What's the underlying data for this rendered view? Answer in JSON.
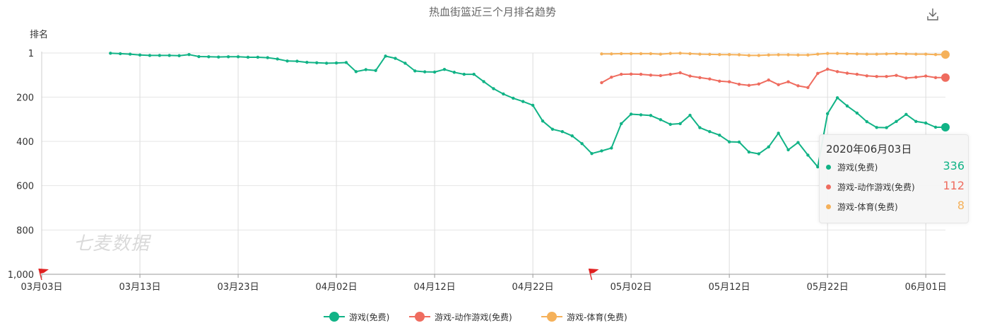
{
  "header": {
    "title": "热血街篮近三个月排名趋势",
    "y_axis_name": "排名",
    "watermark": "七麦数据",
    "download_icon": "download-icon"
  },
  "colors": {
    "free": "#11b386",
    "action": "#ef6c5f",
    "sports": "#f5b15a",
    "grid": "#e6e6e6",
    "axis": "#999999"
  },
  "chart_data": {
    "type": "line",
    "title": "热血街篮近三个月排名趋势",
    "ylabel": "排名",
    "y_inverted": true,
    "ylim": [
      1,
      1000
    ],
    "y_ticks": [
      1,
      200,
      400,
      600,
      800,
      1000
    ],
    "y_tick_labels": [
      "1",
      "200",
      "400",
      "600",
      "800",
      "1,000"
    ],
    "x_range": [
      "2020-03-03",
      "2020-06-03"
    ],
    "x_ticks": [
      "2020-03-03",
      "2020-03-13",
      "2020-03-23",
      "2020-04-02",
      "2020-04-12",
      "2020-04-22",
      "2020-05-02",
      "2020-05-12",
      "2020-05-22",
      "2020-06-01"
    ],
    "x_tick_labels": [
      "03月03日",
      "03月13日",
      "03月23日",
      "04月02日",
      "04月12日",
      "04月22日",
      "05月02日",
      "05月12日",
      "05月22日",
      "06月01日"
    ],
    "grid": true,
    "legend_position": "bottom",
    "markers": [
      {
        "type": "flag",
        "date": "2020-03-03",
        "icon": "flag-icon"
      },
      {
        "type": "flag",
        "date": "2020-04-28",
        "icon": "flag-icon"
      }
    ],
    "series": [
      {
        "name": "游戏(免费)",
        "color": "#11b386",
        "points": [
          [
            "2020-03-10",
            2
          ],
          [
            "2020-03-11",
            4
          ],
          [
            "2020-03-12",
            6
          ],
          [
            "2020-03-13",
            10
          ],
          [
            "2020-03-14",
            12
          ],
          [
            "2020-03-15",
            12
          ],
          [
            "2020-03-16",
            12
          ],
          [
            "2020-03-17",
            13
          ],
          [
            "2020-03-18",
            8
          ],
          [
            "2020-03-19",
            17
          ],
          [
            "2020-03-20",
            18
          ],
          [
            "2020-03-21",
            19
          ],
          [
            "2020-03-22",
            18
          ],
          [
            "2020-03-23",
            18
          ],
          [
            "2020-03-24",
            20
          ],
          [
            "2020-03-25",
            20
          ],
          [
            "2020-03-26",
            22
          ],
          [
            "2020-03-27",
            28
          ],
          [
            "2020-03-28",
            37
          ],
          [
            "2020-03-29",
            38
          ],
          [
            "2020-03-30",
            43
          ],
          [
            "2020-03-31",
            45
          ],
          [
            "2020-04-01",
            47
          ],
          [
            "2020-04-02",
            46
          ],
          [
            "2020-04-03",
            44
          ],
          [
            "2020-04-04",
            85
          ],
          [
            "2020-04-05",
            76
          ],
          [
            "2020-04-06",
            80
          ],
          [
            "2020-04-07",
            15
          ],
          [
            "2020-04-08",
            25
          ],
          [
            "2020-04-09",
            47
          ],
          [
            "2020-04-10",
            82
          ],
          [
            "2020-04-11",
            86
          ],
          [
            "2020-04-12",
            87
          ],
          [
            "2020-04-13",
            75
          ],
          [
            "2020-04-14",
            88
          ],
          [
            "2020-04-15",
            97
          ],
          [
            "2020-04-16",
            97
          ],
          [
            "2020-04-17",
            130
          ],
          [
            "2020-04-18",
            162
          ],
          [
            "2020-04-19",
            186
          ],
          [
            "2020-04-20",
            205
          ],
          [
            "2020-04-21",
            220
          ],
          [
            "2020-04-22",
            237
          ],
          [
            "2020-04-23",
            308
          ],
          [
            "2020-04-24",
            345
          ],
          [
            "2020-04-25",
            356
          ],
          [
            "2020-04-26",
            375
          ],
          [
            "2020-04-27",
            410
          ],
          [
            "2020-04-28",
            455
          ],
          [
            "2020-04-29",
            443
          ],
          [
            "2020-04-30",
            430
          ],
          [
            "2020-05-01",
            320
          ],
          [
            "2020-05-02",
            277
          ],
          [
            "2020-05-03",
            280
          ],
          [
            "2020-05-04",
            283
          ],
          [
            "2020-05-05",
            302
          ],
          [
            "2020-05-06",
            323
          ],
          [
            "2020-05-07",
            320
          ],
          [
            "2020-05-08",
            282
          ],
          [
            "2020-05-09",
            338
          ],
          [
            "2020-05-10",
            356
          ],
          [
            "2020-05-11",
            372
          ],
          [
            "2020-05-12",
            402
          ],
          [
            "2020-05-13",
            403
          ],
          [
            "2020-05-14",
            448
          ],
          [
            "2020-05-15",
            456
          ],
          [
            "2020-05-16",
            425
          ],
          [
            "2020-05-17",
            363
          ],
          [
            "2020-05-18",
            438
          ],
          [
            "2020-05-19",
            405
          ],
          [
            "2020-05-20",
            462
          ],
          [
            "2020-05-21",
            515
          ],
          [
            "2020-05-22",
            275
          ],
          [
            "2020-05-23",
            203
          ],
          [
            "2020-05-24",
            240
          ],
          [
            "2020-05-25",
            272
          ],
          [
            "2020-05-26",
            311
          ],
          [
            "2020-05-27",
            337
          ],
          [
            "2020-05-28",
            338
          ],
          [
            "2020-05-29",
            310
          ],
          [
            "2020-05-30",
            278
          ],
          [
            "2020-05-31",
            310
          ],
          [
            "2020-06-01",
            317
          ],
          [
            "2020-06-02",
            336
          ],
          [
            "2020-06-03",
            336
          ]
        ]
      },
      {
        "name": "游戏-动作游戏(免费)",
        "color": "#ef6c5f",
        "points": [
          [
            "2020-04-29",
            135
          ],
          [
            "2020-04-30",
            110
          ],
          [
            "2020-05-01",
            97
          ],
          [
            "2020-05-02",
            96
          ],
          [
            "2020-05-03",
            97
          ],
          [
            "2020-05-04",
            101
          ],
          [
            "2020-05-05",
            103
          ],
          [
            "2020-05-06",
            97
          ],
          [
            "2020-05-07",
            90
          ],
          [
            "2020-05-08",
            105
          ],
          [
            "2020-05-09",
            112
          ],
          [
            "2020-05-10",
            118
          ],
          [
            "2020-05-11",
            128
          ],
          [
            "2020-05-12",
            131
          ],
          [
            "2020-05-13",
            142
          ],
          [
            "2020-05-14",
            147
          ],
          [
            "2020-05-15",
            141
          ],
          [
            "2020-05-16",
            123
          ],
          [
            "2020-05-17",
            144
          ],
          [
            "2020-05-18",
            131
          ],
          [
            "2020-05-19",
            149
          ],
          [
            "2020-05-20",
            157
          ],
          [
            "2020-05-21",
            93
          ],
          [
            "2020-05-22",
            74
          ],
          [
            "2020-05-23",
            85
          ],
          [
            "2020-05-24",
            92
          ],
          [
            "2020-05-25",
            97
          ],
          [
            "2020-05-26",
            104
          ],
          [
            "2020-05-27",
            107
          ],
          [
            "2020-05-28",
            107
          ],
          [
            "2020-05-29",
            102
          ],
          [
            "2020-05-30",
            114
          ],
          [
            "2020-05-31",
            110
          ],
          [
            "2020-06-01",
            105
          ],
          [
            "2020-06-02",
            112
          ],
          [
            "2020-06-03",
            112
          ]
        ]
      },
      {
        "name": "游戏-体育(免费)",
        "color": "#f5b15a",
        "points": [
          [
            "2020-04-29",
            5
          ],
          [
            "2020-04-30",
            5
          ],
          [
            "2020-05-01",
            4
          ],
          [
            "2020-05-02",
            4
          ],
          [
            "2020-05-03",
            4
          ],
          [
            "2020-05-04",
            4
          ],
          [
            "2020-05-05",
            6
          ],
          [
            "2020-05-06",
            3
          ],
          [
            "2020-05-07",
            2
          ],
          [
            "2020-05-08",
            4
          ],
          [
            "2020-05-09",
            6
          ],
          [
            "2020-05-10",
            7
          ],
          [
            "2020-05-11",
            8
          ],
          [
            "2020-05-12",
            8
          ],
          [
            "2020-05-13",
            9
          ],
          [
            "2020-05-14",
            12
          ],
          [
            "2020-05-15",
            12
          ],
          [
            "2020-05-16",
            10
          ],
          [
            "2020-05-17",
            9
          ],
          [
            "2020-05-18",
            9
          ],
          [
            "2020-05-19",
            10
          ],
          [
            "2020-05-20",
            10
          ],
          [
            "2020-05-21",
            6
          ],
          [
            "2020-05-22",
            3
          ],
          [
            "2020-05-23",
            3
          ],
          [
            "2020-05-24",
            4
          ],
          [
            "2020-05-25",
            5
          ],
          [
            "2020-05-26",
            6
          ],
          [
            "2020-05-27",
            6
          ],
          [
            "2020-05-28",
            5
          ],
          [
            "2020-05-29",
            4
          ],
          [
            "2020-05-30",
            5
          ],
          [
            "2020-05-31",
            6
          ],
          [
            "2020-06-01",
            6
          ],
          [
            "2020-06-02",
            8
          ],
          [
            "2020-06-03",
            8
          ]
        ]
      }
    ]
  },
  "tooltip": {
    "date": "2020年06月03日",
    "rows": [
      {
        "name": "游戏(免费)",
        "value": "336",
        "color": "#11b386"
      },
      {
        "name": "游戏-动作游戏(免费)",
        "value": "112",
        "color": "#ef6c5f"
      },
      {
        "name": "游戏-体育(免费)",
        "value": "8",
        "color": "#f5b15a"
      }
    ]
  },
  "legend": [
    {
      "label": "游戏(免费)",
      "color": "#11b386"
    },
    {
      "label": "游戏-动作游戏(免费)",
      "color": "#ef6c5f"
    },
    {
      "label": "游戏-体育(免费)",
      "color": "#f5b15a"
    }
  ]
}
